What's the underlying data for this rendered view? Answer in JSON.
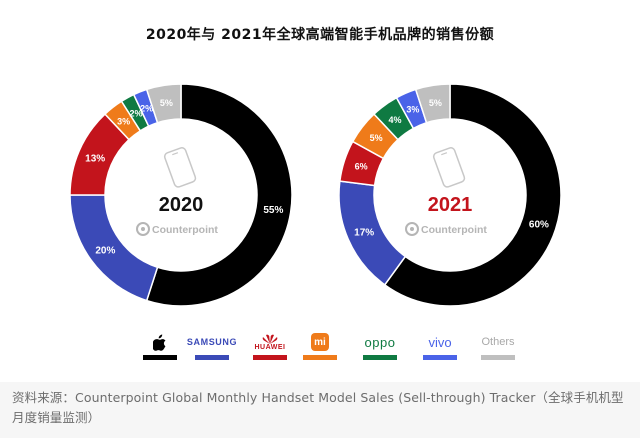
{
  "title": "2020年与 2021年全球高端智能手机品牌的销售份额",
  "colors": {
    "Apple": "#000000",
    "Samsung": "#3b4ab7",
    "Huawei": "#c3141c",
    "Xiaomi": "#ef7b1a",
    "OPPO": "#0f7a42",
    "vivo": "#4a63e8",
    "Others": "#bfbfbf"
  },
  "watermark": "Counterpoint",
  "chart_data": [
    {
      "type": "pie",
      "donut": true,
      "center_label": "2020",
      "center_label_color": "#111111",
      "series": [
        {
          "name": "Apple",
          "value": 55,
          "label": "55%"
        },
        {
          "name": "Samsung",
          "value": 20,
          "label": "20%"
        },
        {
          "name": "Huawei",
          "value": 13,
          "label": "13%"
        },
        {
          "name": "Xiaomi",
          "value": 3,
          "label": "3%"
        },
        {
          "name": "OPPO",
          "value": 2,
          "label": "2%"
        },
        {
          "name": "vivo",
          "value": 2,
          "label": "2%"
        },
        {
          "name": "Others",
          "value": 5,
          "label": "5%"
        }
      ]
    },
    {
      "type": "pie",
      "donut": true,
      "center_label": "2021",
      "center_label_color": "#c3141c",
      "series": [
        {
          "name": "Apple",
          "value": 60,
          "label": "60%"
        },
        {
          "name": "Samsung",
          "value": 17,
          "label": "17%"
        },
        {
          "name": "Huawei",
          "value": 6,
          "label": "6%"
        },
        {
          "name": "Xiaomi",
          "value": 5,
          "label": "5%"
        },
        {
          "name": "OPPO",
          "value": 4,
          "label": "4%"
        },
        {
          "name": "vivo",
          "value": 3,
          "label": "3%"
        },
        {
          "name": "Others",
          "value": 5,
          "label": "5%"
        }
      ]
    }
  ],
  "legend": [
    {
      "key": "Apple",
      "text": "",
      "icon": "apple-logo",
      "color": "#000000"
    },
    {
      "key": "Samsung",
      "text": "SAMSUNG",
      "color": "#3b4ab7"
    },
    {
      "key": "Huawei",
      "text": "HUAWEI",
      "icon": "huawei-logo",
      "color": "#c3141c"
    },
    {
      "key": "Xiaomi",
      "text": "mi",
      "icon": "xiaomi-logo",
      "color": "#ef7b1a"
    },
    {
      "key": "OPPO",
      "text": "oppo",
      "color": "#0f7a42"
    },
    {
      "key": "vivo",
      "text": "vivo",
      "color": "#4a63e8"
    },
    {
      "key": "Others",
      "text": "Others",
      "color": "#bfbfbf"
    }
  ],
  "source_note": "资料来源：Counterpoint Global Monthly Handset Model Sales (Sell-through) Tracker（全球手机机型月度销量监测）"
}
